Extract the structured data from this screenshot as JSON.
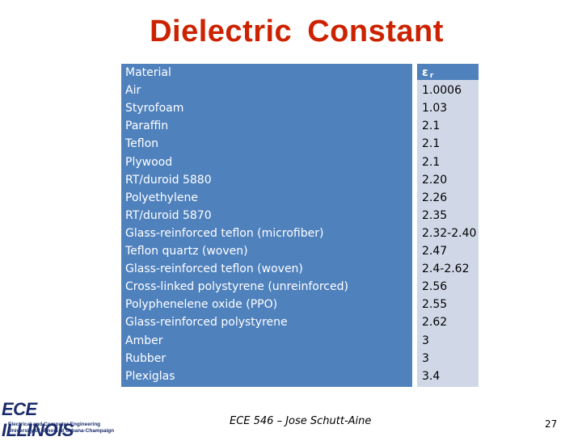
{
  "title": "Dielectric  Constant",
  "table": {
    "header_material": "Material",
    "header_er_symbol": "ε",
    "header_er_sub": "r",
    "rows": [
      {
        "material": "Air",
        "er": "1.0006"
      },
      {
        "material": "Styrofoam",
        "er": "1.03"
      },
      {
        "material": "Paraffin",
        "er": "2.1"
      },
      {
        "material": "Teflon",
        "er": "2.1"
      },
      {
        "material": "Plywood",
        "er": "2.1"
      },
      {
        "material": "RT/duroid 5880",
        "er": "2.20"
      },
      {
        "material": "Polyethylene",
        "er": "2.26"
      },
      {
        "material": "RT/duroid 5870",
        "er": "2.35"
      },
      {
        "material": "Glass-reinforced teflon (microfiber)",
        "er": "2.32-2.40"
      },
      {
        "material": "Teflon quartz (woven)",
        "er": "2.47"
      },
      {
        "material": "Glass-reinforced teflon (woven)",
        "er": "2.4-2.62"
      },
      {
        "material": "Cross-linked polystyrene (unreinforced)",
        "er": "2.56"
      },
      {
        "material": "Polyphenelene oxide (PPO)",
        "er": "2.55"
      },
      {
        "material": "Glass-reinforced polystyrene",
        "er": "2.62"
      },
      {
        "material": "Amber",
        "er": "3"
      },
      {
        "material": "Rubber",
        "er": "3"
      },
      {
        "material": "Plexiglas",
        "er": "3.4"
      }
    ]
  },
  "footer": {
    "course": "ECE 546 – Jose Schutt-Aine",
    "page_number": "27"
  },
  "logo": {
    "main": "ECE ILLINOIS",
    "line1": "Electrical and Computer Engineering",
    "line2": "University of Illinois at Urbana-Champaign"
  },
  "colors": {
    "title": "#cc2200",
    "header_fill": "#4f81bd",
    "value_fill": "#d0d8e8"
  }
}
